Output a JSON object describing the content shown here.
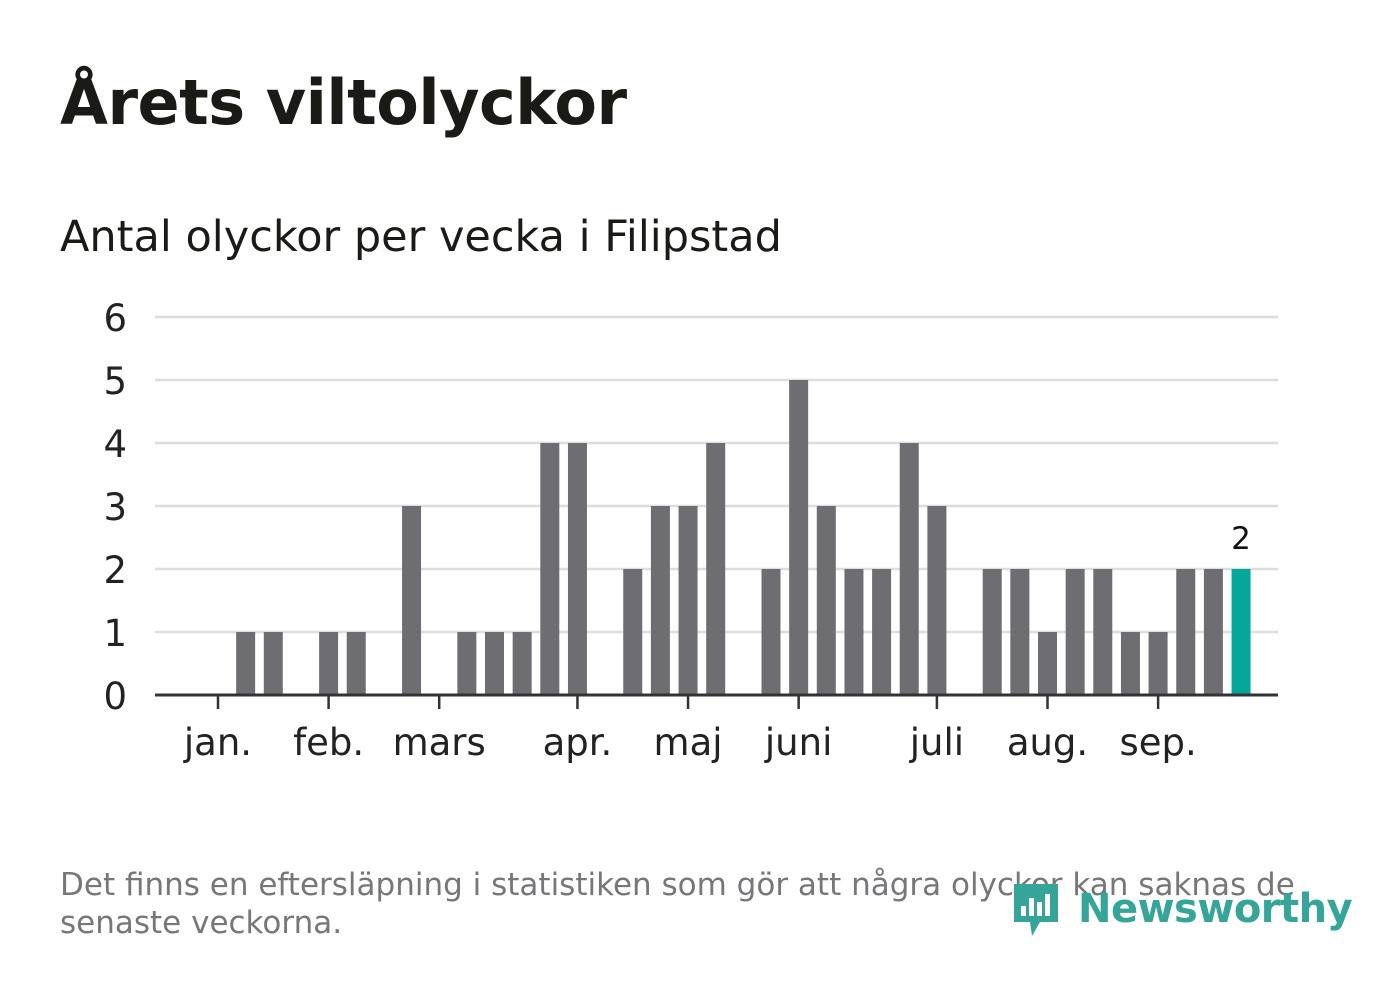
{
  "title": "Årets viltolyckor",
  "subtitle": "Antal olyckor per vecka i Filipstad",
  "note": "Det finns en eftersläpning i statistiken som gör att några olyckor kan saknas de senaste veckorna.",
  "brand": {
    "name": "Newsworthy",
    "color": "#35a59a",
    "icon": "newsworthy-logo-icon"
  },
  "colors": {
    "bar": "#6e6d72",
    "highlight": "#05a79a",
    "grid": "#dddddd",
    "axis": "#333333"
  },
  "chart_data": {
    "type": "bar",
    "ylim": [
      0,
      6
    ],
    "yticks": [
      0,
      1,
      2,
      3,
      4,
      5,
      6
    ],
    "grid": true,
    "x_tick_labels": [
      "jan.",
      "feb.",
      "mars",
      "apr.",
      "maj",
      "juni",
      "juli",
      "aug.",
      "sep."
    ],
    "x_tick_weeks": [
      1,
      5,
      9,
      14,
      18,
      22,
      27,
      31,
      35
    ],
    "weeks": [
      1,
      2,
      3,
      4,
      5,
      6,
      7,
      8,
      9,
      10,
      11,
      12,
      13,
      14,
      15,
      16,
      17,
      18,
      19,
      20,
      21,
      22,
      23,
      24,
      25,
      26,
      27,
      28,
      29,
      30,
      31,
      32,
      33,
      34,
      35,
      36,
      37,
      38
    ],
    "values": [
      0,
      1,
      1,
      0,
      1,
      1,
      0,
      3,
      0,
      1,
      1,
      1,
      4,
      4,
      0,
      2,
      3,
      3,
      4,
      0,
      2,
      5,
      3,
      2,
      2,
      4,
      3,
      0,
      2,
      2,
      1,
      2,
      2,
      1,
      1,
      2,
      2,
      2
    ],
    "highlight_index": 37,
    "highlight_label": "2"
  }
}
